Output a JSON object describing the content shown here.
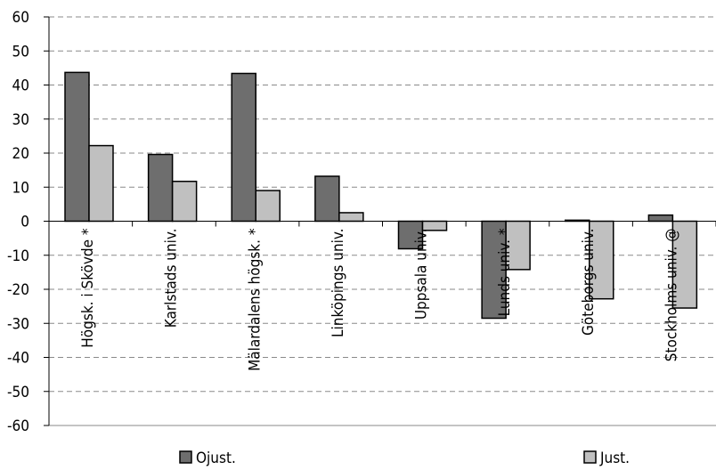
{
  "chart_data": {
    "type": "bar",
    "title": "",
    "xlabel": "",
    "ylabel": "",
    "ylim": [
      -60,
      60
    ],
    "yticks": [
      60,
      50,
      40,
      30,
      20,
      10,
      0,
      -10,
      -20,
      -30,
      -40,
      -50,
      -60
    ],
    "grid": true,
    "legend_position": "bottom",
    "categories": [
      "Högsk. i Skövde *",
      "Karlstads univ.",
      "Mälardalens högsk. *",
      "Linköpings univ.",
      "Uppsala univ.",
      "Lunds univ. *",
      "Göteborgs univ.",
      "Stockholms univ. @"
    ],
    "series": [
      {
        "name": "Ojust.",
        "color": "#6e6e6e",
        "values": [
          43.7,
          19.6,
          43.4,
          13.2,
          -8.1,
          -28.5,
          0.3,
          1.8
        ]
      },
      {
        "name": "Just.",
        "color": "#c0c0c0",
        "values": [
          22.2,
          11.7,
          9.0,
          2.5,
          -2.7,
          -14.2,
          -22.8,
          -25.5
        ]
      }
    ]
  }
}
